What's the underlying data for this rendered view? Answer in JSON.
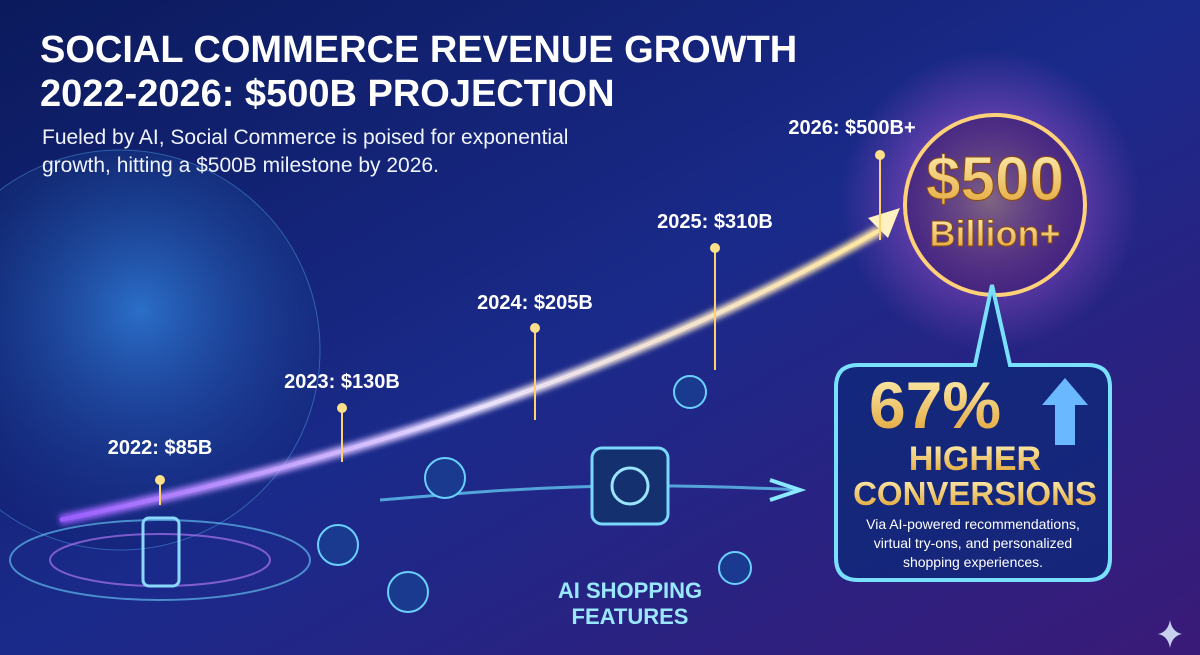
{
  "title": [
    "SOCIAL COMMERCE REVENUE GROWTH",
    "2022-2026: $500B PROJECTION"
  ],
  "subtitle": [
    "Fueled by AI, Social Commerce is poised for exponential",
    "growth, hitting a $500B milestone by 2026."
  ],
  "milestones": [
    "2022: $85B",
    "2023: $130B",
    "2024: $205B",
    "2025: $310B",
    "2026: $500B+"
  ],
  "highlight": {
    "amount": "$500",
    "unit": "Billion+"
  },
  "callout": {
    "stat": "67%",
    "headline": [
      "HIGHER",
      "CONVERSIONS"
    ],
    "note": [
      "Via AI-powered recommendations,",
      "virtual try-ons, and personalized",
      "shopping experiences."
    ]
  },
  "features_label": [
    "AI SHOPPING",
    "FEATURES"
  ]
}
